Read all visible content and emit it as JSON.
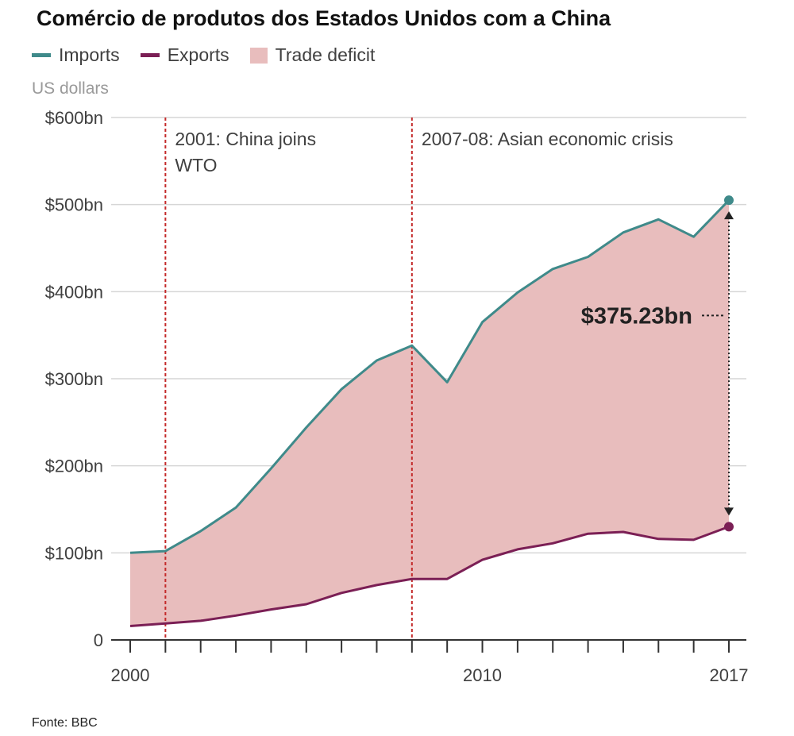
{
  "chart_data": {
    "type": "area",
    "title": "Comércio de produtos dos Estados Unidos com a China",
    "unit_label": "US dollars",
    "x": [
      2000,
      2001,
      2002,
      2003,
      2004,
      2005,
      2006,
      2007,
      2008,
      2009,
      2010,
      2011,
      2012,
      2013,
      2014,
      2015,
      2016,
      2017
    ],
    "series": [
      {
        "name": "Imports",
        "color": "#3f8a8a",
        "values": [
          100,
          102,
          125,
          152,
          197,
          244,
          288,
          321,
          338,
          296,
          365,
          399,
          426,
          440,
          468,
          483,
          463,
          505
        ]
      },
      {
        "name": "Exports",
        "color": "#7b1f55",
        "values": [
          16,
          19,
          22,
          28,
          35,
          41,
          54,
          63,
          70,
          70,
          92,
          104,
          111,
          122,
          124,
          116,
          115,
          130
        ]
      }
    ],
    "deficit": {
      "name": "Trade deficit",
      "color": "#e8bdbd"
    },
    "xlim": [
      2000,
      2017
    ],
    "ylim": [
      0,
      600
    ],
    "y_ticks": [
      {
        "value": 0,
        "label": "0"
      },
      {
        "value": 100,
        "label": "$100bn"
      },
      {
        "value": 200,
        "label": "$200bn"
      },
      {
        "value": 300,
        "label": "$300bn"
      },
      {
        "value": 400,
        "label": "$400bn"
      },
      {
        "value": 500,
        "label": "$500bn"
      },
      {
        "value": 600,
        "label": "$600bn"
      }
    ],
    "x_tick_labels": [
      {
        "value": 2000,
        "label": "2000"
      },
      {
        "value": 2010,
        "label": "2010"
      },
      {
        "value": 2017,
        "label": "2017"
      }
    ],
    "grid": true,
    "annotations": [
      {
        "x": 2001,
        "lines": [
          "2001: China joins",
          "WTO"
        ]
      },
      {
        "x": 2008,
        "lines": [
          "2007-08: Asian economic crisis"
        ]
      }
    ],
    "callout": {
      "x": 2017,
      "label": "$375.23bn",
      "value": 375.23
    }
  },
  "source": "Fonte: BBC"
}
